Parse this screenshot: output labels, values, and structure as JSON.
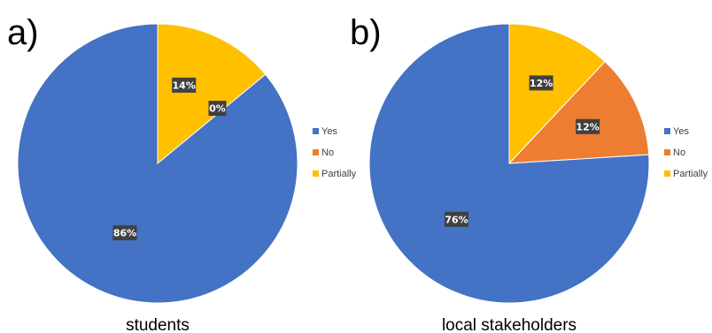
{
  "chart_data": [
    {
      "type": "pie",
      "panel": "a)",
      "caption": "students",
      "categories": [
        "Yes",
        "No",
        "Partially"
      ],
      "values": [
        86,
        0,
        14
      ],
      "data_labels": [
        "86%",
        "0%",
        "14%"
      ],
      "colors": [
        "#4472C4",
        "#ED7D31",
        "#FFC000"
      ],
      "legend": {
        "placement": "right",
        "entries": [
          "Yes",
          "No",
          "Partially"
        ]
      }
    },
    {
      "type": "pie",
      "panel": "b)",
      "caption": "local stakeholders",
      "categories": [
        "Yes",
        "No",
        "Partially"
      ],
      "values": [
        76,
        12,
        12
      ],
      "data_labels": [
        "76%",
        "12%",
        "12%"
      ],
      "colors": [
        "#4472C4",
        "#ED7D31",
        "#FFC000"
      ],
      "legend": {
        "placement": "right",
        "entries": [
          "Yes",
          "No",
          "Partially"
        ]
      }
    }
  ]
}
